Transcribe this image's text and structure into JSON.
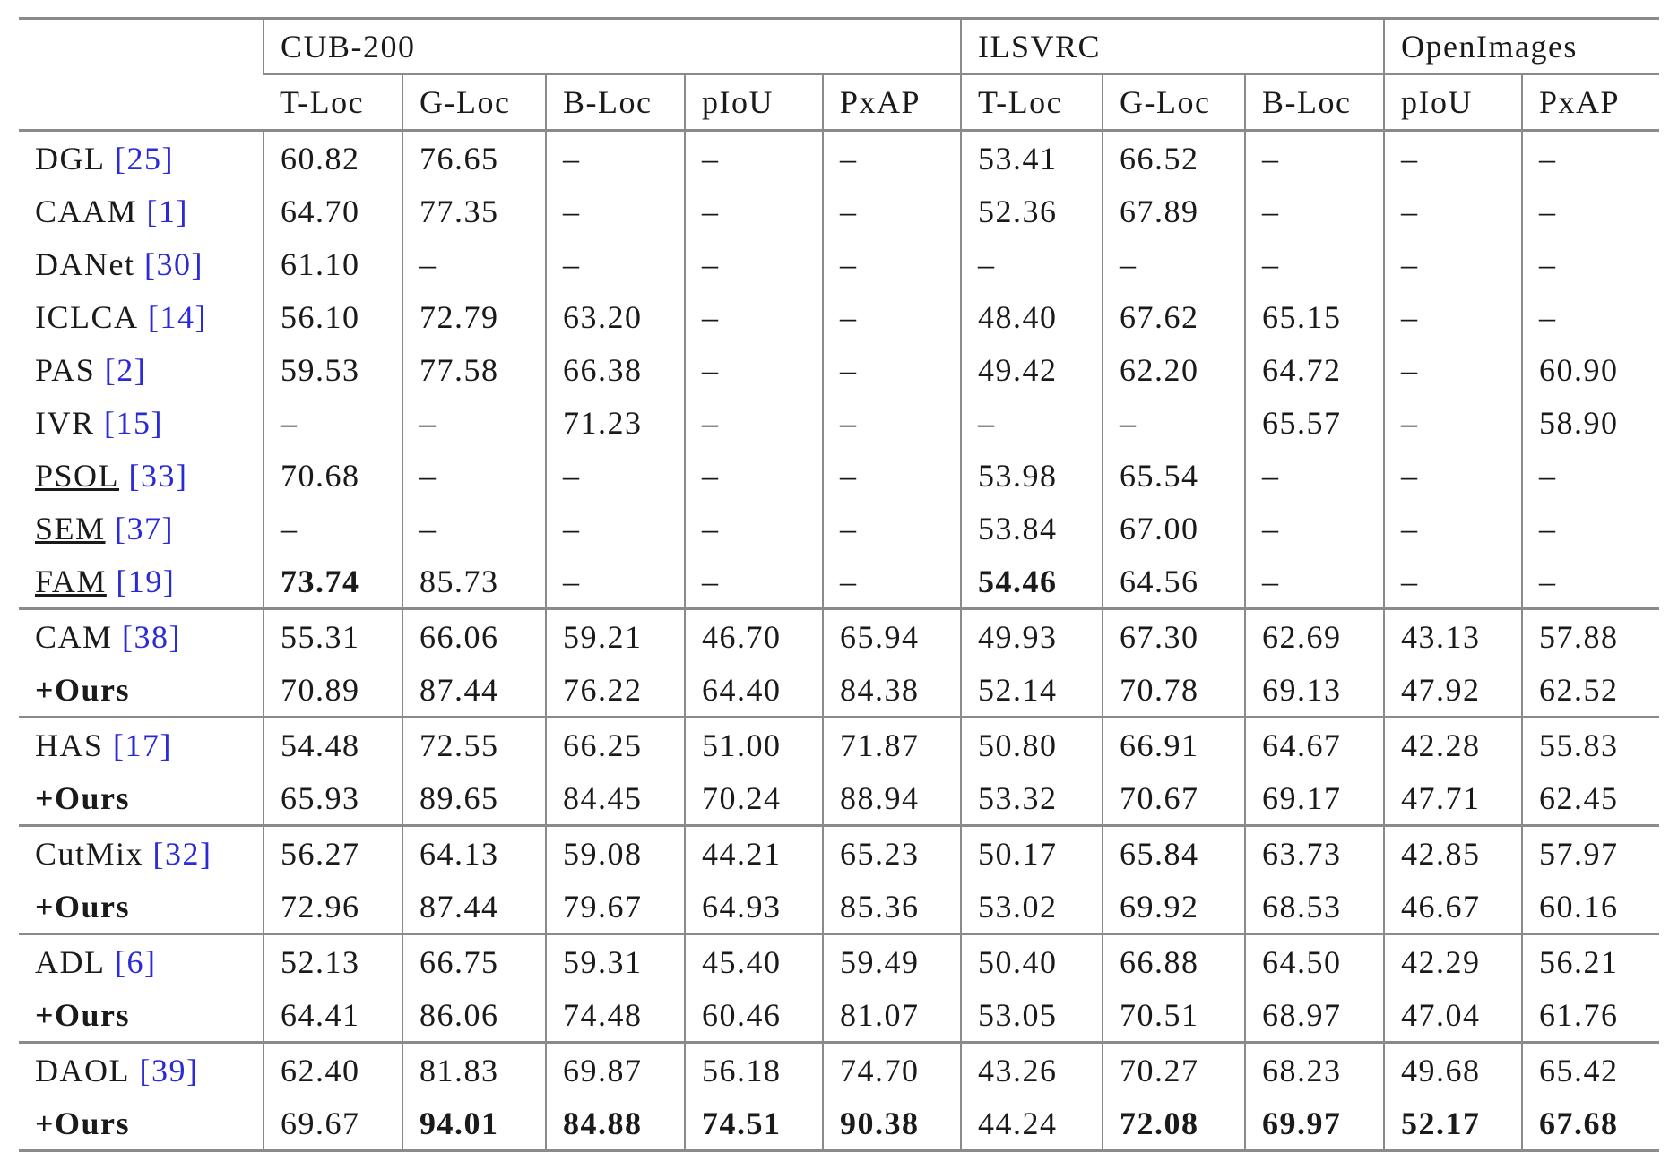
{
  "table": {
    "groups": [
      {
        "label": "CUB-200",
        "columns": [
          "T-Loc",
          "G-Loc",
          "B-Loc",
          "pIoU",
          "PxAP"
        ]
      },
      {
        "label": "ILSVRC",
        "columns": [
          "T-Loc",
          "G-Loc",
          "B-Loc"
        ]
      },
      {
        "label": "OpenImages",
        "columns": [
          "pIoU",
          "PxAP"
        ]
      }
    ],
    "sections": [
      {
        "rows": [
          {
            "method": "DGL",
            "cite": "[25]",
            "values": [
              "60.82",
              "76.65",
              "–",
              "–",
              "–",
              "53.41",
              "66.52",
              "–",
              "–",
              "–"
            ]
          },
          {
            "method": "CAAM",
            "cite": "[1]",
            "values": [
              "64.70",
              "77.35",
              "–",
              "–",
              "–",
              "52.36",
              "67.89",
              "–",
              "–",
              "–"
            ]
          },
          {
            "method": "DANet",
            "cite": "[30]",
            "values": [
              "61.10",
              "–",
              "–",
              "–",
              "–",
              "–",
              "–",
              "–",
              "–",
              "–"
            ]
          },
          {
            "method": "ICLCA",
            "cite": "[14]",
            "values": [
              "56.10",
              "72.79",
              "63.20",
              "–",
              "–",
              "48.40",
              "67.62",
              "65.15",
              "–",
              "–"
            ]
          },
          {
            "method": "PAS",
            "cite": "[2]",
            "values": [
              "59.53",
              "77.58",
              "66.38",
              "–",
              "–",
              "49.42",
              "62.20",
              "64.72",
              "–",
              "60.90"
            ]
          },
          {
            "method": "IVR",
            "cite": "[15]",
            "values": [
              "–",
              "–",
              "71.23",
              "–",
              "–",
              "–",
              "–",
              "65.57",
              "–",
              "58.90"
            ]
          },
          {
            "method": "PSOL",
            "cite": "[33]",
            "method_style": "underline",
            "values": [
              "70.68",
              "–",
              "–",
              "–",
              "–",
              "53.98",
              "65.54",
              "–",
              "–",
              "–"
            ]
          },
          {
            "method": "SEM",
            "cite": "[37]",
            "method_style": "underline",
            "values": [
              "–",
              "–",
              "–",
              "–",
              "–",
              "53.84",
              "67.00",
              "–",
              "–",
              "–"
            ]
          },
          {
            "method": "FAM",
            "cite": "[19]",
            "method_style": "underline",
            "values": [
              "73.74",
              "85.73",
              "–",
              "–",
              "–",
              "54.46",
              "64.56",
              "–",
              "–",
              "–"
            ],
            "bold": [
              0,
              5
            ]
          }
        ]
      },
      {
        "rows": [
          {
            "method": "CAM",
            "cite": "[38]",
            "values": [
              "55.31",
              "66.06",
              "59.21",
              "46.70",
              "65.94",
              "49.93",
              "67.30",
              "62.69",
              "43.13",
              "57.88"
            ]
          },
          {
            "method": "+Ours",
            "method_style": "bold",
            "values": [
              "70.89",
              "87.44",
              "76.22",
              "64.40",
              "84.38",
              "52.14",
              "70.78",
              "69.13",
              "47.92",
              "62.52"
            ]
          }
        ]
      },
      {
        "rows": [
          {
            "method": "HAS",
            "cite": "[17]",
            "values": [
              "54.48",
              "72.55",
              "66.25",
              "51.00",
              "71.87",
              "50.80",
              "66.91",
              "64.67",
              "42.28",
              "55.83"
            ]
          },
          {
            "method": "+Ours",
            "method_style": "bold",
            "values": [
              "65.93",
              "89.65",
              "84.45",
              "70.24",
              "88.94",
              "53.32",
              "70.67",
              "69.17",
              "47.71",
              "62.45"
            ]
          }
        ]
      },
      {
        "rows": [
          {
            "method": "CutMix",
            "cite": "[32]",
            "values": [
              "56.27",
              "64.13",
              "59.08",
              "44.21",
              "65.23",
              "50.17",
              "65.84",
              "63.73",
              "42.85",
              "57.97"
            ]
          },
          {
            "method": "+Ours",
            "method_style": "bold",
            "values": [
              "72.96",
              "87.44",
              "79.67",
              "64.93",
              "85.36",
              "53.02",
              "69.92",
              "68.53",
              "46.67",
              "60.16"
            ]
          }
        ]
      },
      {
        "rows": [
          {
            "method": "ADL",
            "cite": "[6]",
            "values": [
              "52.13",
              "66.75",
              "59.31",
              "45.40",
              "59.49",
              "50.40",
              "66.88",
              "64.50",
              "42.29",
              "56.21"
            ]
          },
          {
            "method": "+Ours",
            "method_style": "bold",
            "values": [
              "64.41",
              "86.06",
              "74.48",
              "60.46",
              "81.07",
              "53.05",
              "70.51",
              "68.97",
              "47.04",
              "61.76"
            ]
          }
        ]
      },
      {
        "rows": [
          {
            "method": "DAOL",
            "cite": "[39]",
            "values": [
              "62.40",
              "81.83",
              "69.87",
              "56.18",
              "74.70",
              "43.26",
              "70.27",
              "68.23",
              "49.68",
              "65.42"
            ]
          },
          {
            "method": "+Ours",
            "method_style": "bold",
            "values": [
              "69.67",
              "94.01",
              "84.88",
              "74.51",
              "90.38",
              "44.24",
              "72.08",
              "69.97",
              "52.17",
              "67.68"
            ],
            "bold": [
              1,
              2,
              3,
              4,
              6,
              7,
              8,
              9
            ]
          }
        ]
      }
    ]
  }
}
